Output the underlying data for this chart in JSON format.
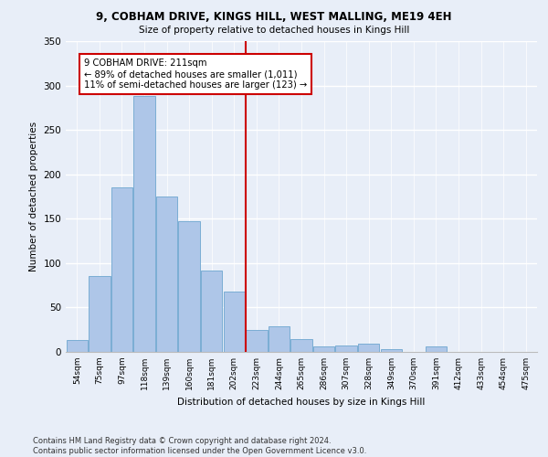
{
  "title1": "9, COBHAM DRIVE, KINGS HILL, WEST MALLING, ME19 4EH",
  "title2": "Size of property relative to detached houses in Kings Hill",
  "xlabel": "Distribution of detached houses by size in Kings Hill",
  "ylabel": "Number of detached properties",
  "bar_labels": [
    "54sqm",
    "75sqm",
    "97sqm",
    "118sqm",
    "139sqm",
    "160sqm",
    "181sqm",
    "202sqm",
    "223sqm",
    "244sqm",
    "265sqm",
    "286sqm",
    "307sqm",
    "328sqm",
    "349sqm",
    "370sqm",
    "391sqm",
    "412sqm",
    "433sqm",
    "454sqm",
    "475sqm"
  ],
  "bar_heights": [
    13,
    85,
    185,
    288,
    175,
    147,
    92,
    68,
    25,
    29,
    14,
    6,
    7,
    9,
    3,
    0,
    6,
    0,
    0,
    0,
    0
  ],
  "bar_color": "#aec6e8",
  "bar_edge_color": "#7aadd4",
  "vline_x_index": 7.5,
  "vline_color": "#cc0000",
  "annotation_text": "9 COBHAM DRIVE: 211sqm\n← 89% of detached houses are smaller (1,011)\n11% of semi-detached houses are larger (123) →",
  "annotation_box_color": "#cc0000",
  "bg_color": "#e8eef8",
  "grid_color": "#d0d8e8",
  "footnote": "Contains HM Land Registry data © Crown copyright and database right 2024.\nContains public sector information licensed under the Open Government Licence v3.0.",
  "ylim": [
    0,
    350
  ],
  "yticks": [
    0,
    50,
    100,
    150,
    200,
    250,
    300,
    350
  ]
}
